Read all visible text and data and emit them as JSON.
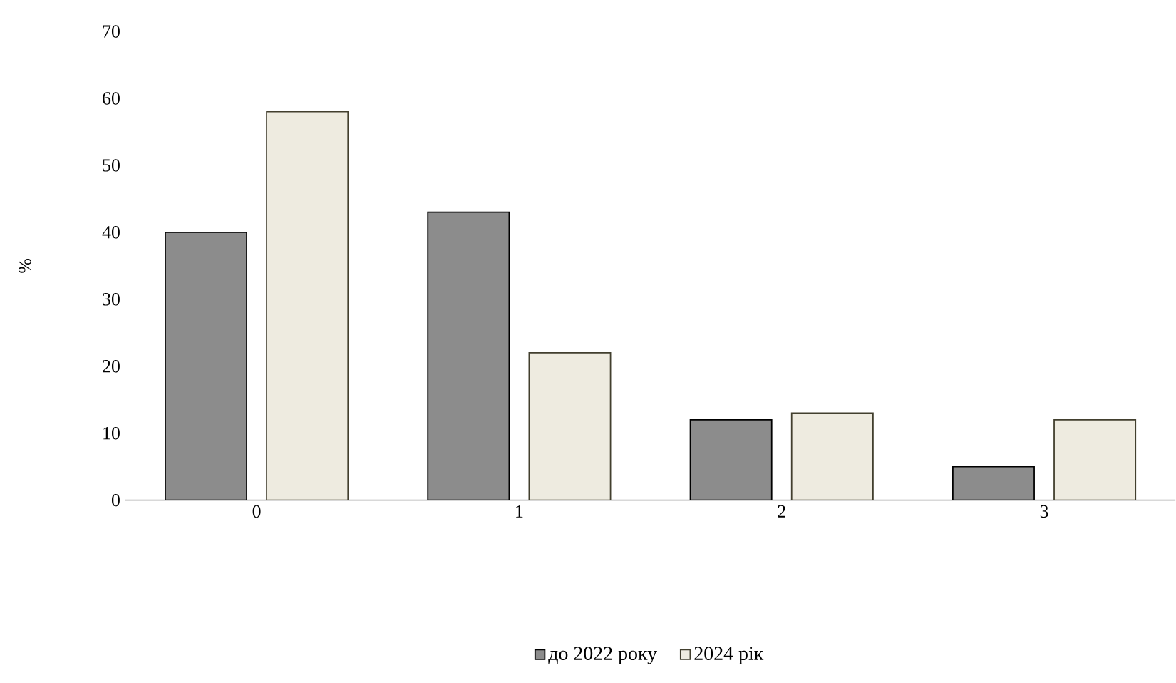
{
  "chart_data": {
    "type": "bar",
    "ylabel": "%",
    "categories": [
      "0",
      "1",
      "2",
      "3"
    ],
    "series": [
      {
        "name": "до 2022 року",
        "color": "#8c8c8c",
        "values": [
          40,
          43,
          12,
          5
        ]
      },
      {
        "name": "2024 рік",
        "color": "#eeebe0",
        "values": [
          58,
          22,
          13,
          12
        ]
      }
    ],
    "ylim": [
      0,
      70
    ],
    "yticks": [
      0,
      10,
      20,
      30,
      40,
      50,
      60,
      70
    ],
    "legend": "bottom"
  }
}
